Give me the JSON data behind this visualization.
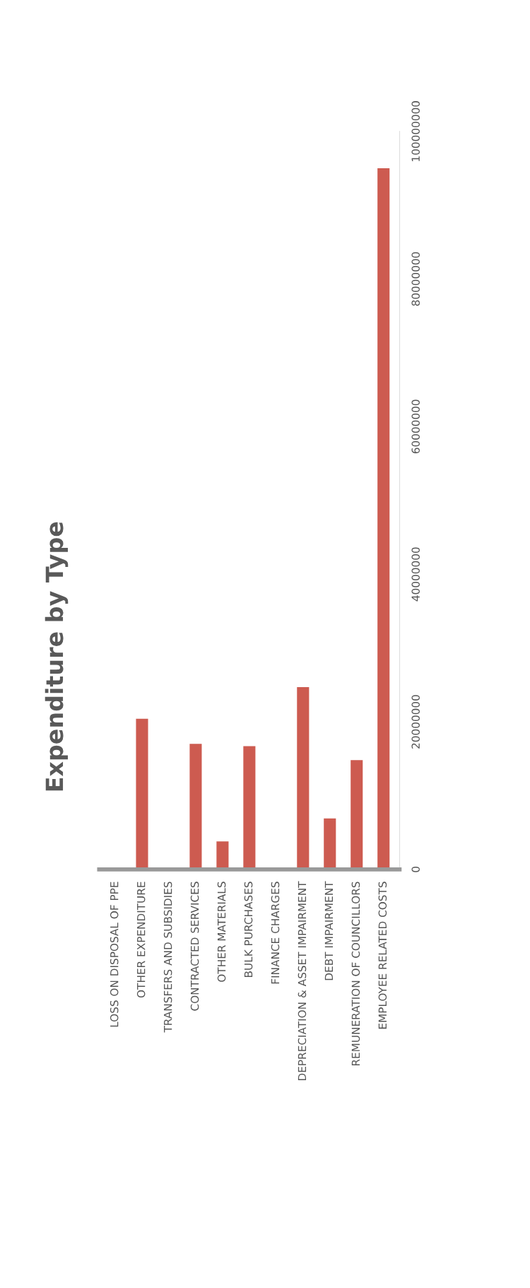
{
  "chart_data": {
    "type": "bar",
    "title": "Expenditure by Type",
    "categories": [
      "LOSS ON DISPOSAL OF PPE",
      "OTHER EXPENDITURE",
      "TRANSFERS AND SUBSIDIES",
      "CONTRACTED SERVICES",
      "OTHER MATERIALS",
      "BULK PURCHASES",
      "FINANCE CHARGES",
      "DEPRECIATION & ASSET IMPAIRMENT",
      "DEBT IMPAIRMENT",
      "REMUNERATION OF COUNCILLORS",
      "EMPLOYEE RELATED COSTS"
    ],
    "values": [
      0,
      20400000,
      0,
      17000000,
      3800000,
      16700000,
      0,
      24700000,
      6900000,
      14800000,
      95000000
    ],
    "color": "#cd5b50",
    "ylim": [
      0,
      100000000
    ],
    "yticks": [
      0,
      20000000,
      40000000,
      60000000,
      80000000,
      100000000
    ],
    "grid": false
  }
}
